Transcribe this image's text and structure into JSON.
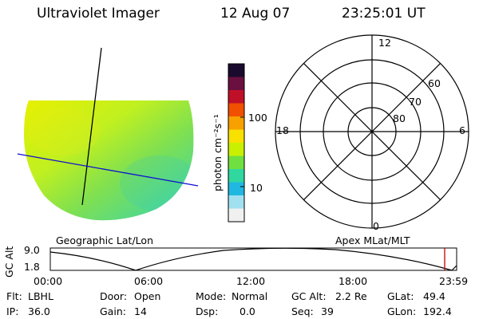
{
  "header": {
    "instrument": "Ultraviolet Imager",
    "date": "12 Aug 07",
    "time": "23:25:01 UT"
  },
  "left_panel": {
    "label": "Geographic Lat/Lon"
  },
  "colorbar": {
    "unit_label": "photon cm⁻²s⁻¹",
    "ticks": [
      "100",
      "10"
    ],
    "colors": [
      "#1a0a2e",
      "#6a1040",
      "#c01028",
      "#f05000",
      "#f8a000",
      "#f8e000",
      "#c8f000",
      "#70e040",
      "#30d8a0",
      "#20b8e0",
      "#a0e0f0",
      "#f0f0f0"
    ]
  },
  "polar": {
    "label": "Apex MLat/MLT",
    "mlt_labels": {
      "top": "12",
      "left": "18",
      "right": "6",
      "bottom": "0"
    },
    "lat_labels": [
      "60",
      "70",
      "80"
    ]
  },
  "timeline": {
    "y_label": "GC Alt",
    "y_ticks": [
      "9.0",
      "1.8"
    ],
    "x_ticks": [
      "00:00",
      "06:00",
      "12:00",
      "18:00",
      "23:59"
    ],
    "marker_color": "#c00000"
  },
  "info": {
    "row1": [
      {
        "key": "Flt:",
        "val": "LBHL"
      },
      {
        "key": "Door:",
        "val": "Open"
      },
      {
        "key": "Mode:",
        "val": "Normal"
      },
      {
        "key": "GC Alt:",
        "val": "2.2 Re"
      },
      {
        "key": "GLat:",
        "val": "49.4"
      }
    ],
    "row2": [
      {
        "key": "IP:",
        "val": "36.0"
      },
      {
        "key": "Gain:",
        "val": "14"
      },
      {
        "key": "Dsp:",
        "val": "0.0"
      },
      {
        "key": "Seq:",
        "val": "39"
      },
      {
        "key": "GLon:",
        "val": "192.4"
      }
    ]
  }
}
